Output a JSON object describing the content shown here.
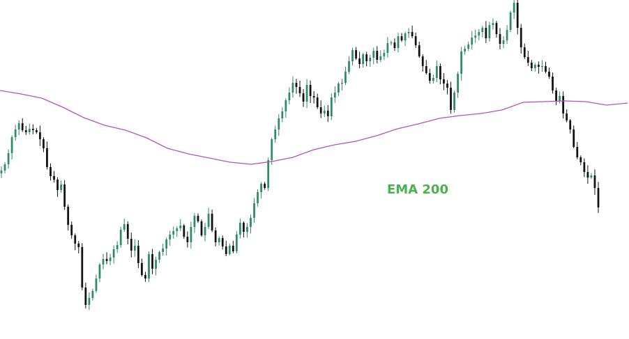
{
  "chart_data": {
    "type": "candlestick",
    "colors": {
      "bull": "#2e8b63",
      "bear": "#111111",
      "ema": "#b84fc4",
      "label": "#4caf50",
      "background": "#ffffff"
    },
    "price_range": [
      0,
      487
    ],
    "annotation": {
      "text": "EMA 200"
    },
    "closes": [
      245,
      236,
      220,
      197,
      186,
      177,
      187,
      190,
      185,
      187,
      190,
      200,
      213,
      240,
      253,
      258,
      273,
      265,
      297,
      323,
      338,
      350,
      355,
      413,
      438,
      428,
      418,
      400,
      380,
      372,
      375,
      370,
      358,
      352,
      330,
      322,
      343,
      360,
      353,
      378,
      395,
      400,
      365,
      386,
      373,
      362,
      357,
      344,
      337,
      332,
      328,
      324,
      340,
      348,
      326,
      310,
      318,
      338,
      326,
      307,
      331,
      348,
      342,
      354,
      365,
      353,
      361,
      337,
      320,
      333,
      326,
      313,
      292,
      276,
      264,
      270,
      230,
      200,
      186,
      170,
      160,
      144,
      133,
      119,
      125,
      134,
      146,
      122,
      138,
      140,
      154,
      163,
      159,
      167,
      140,
      133,
      120,
      119,
      103,
      88,
      72,
      84,
      92,
      78,
      88,
      83,
      73,
      86,
      81,
      76,
      62,
      61,
      69,
      52,
      58,
      48,
      46,
      52,
      65,
      81,
      95,
      105,
      116,
      112,
      95,
      114,
      120,
      126,
      158,
      133,
      106,
      74,
      70,
      64,
      54,
      51,
      46,
      40,
      55,
      36,
      33,
      49,
      63,
      58,
      43,
      18,
      4,
      40,
      68,
      82,
      90,
      98,
      93,
      96,
      95,
      103,
      110,
      130,
      145,
      138,
      163,
      173,
      186,
      211,
      226,
      233,
      247,
      255,
      252,
      270,
      298
    ],
    "ema": [
      130,
      135,
      141,
      154,
      169,
      180,
      187,
      198,
      213,
      221,
      227,
      233,
      236,
      232,
      226,
      215,
      208,
      203,
      195,
      185,
      178,
      170,
      166,
      163,
      158,
      147,
      146,
      145,
      146,
      151,
      148
    ],
    "ema_step": 30
  }
}
